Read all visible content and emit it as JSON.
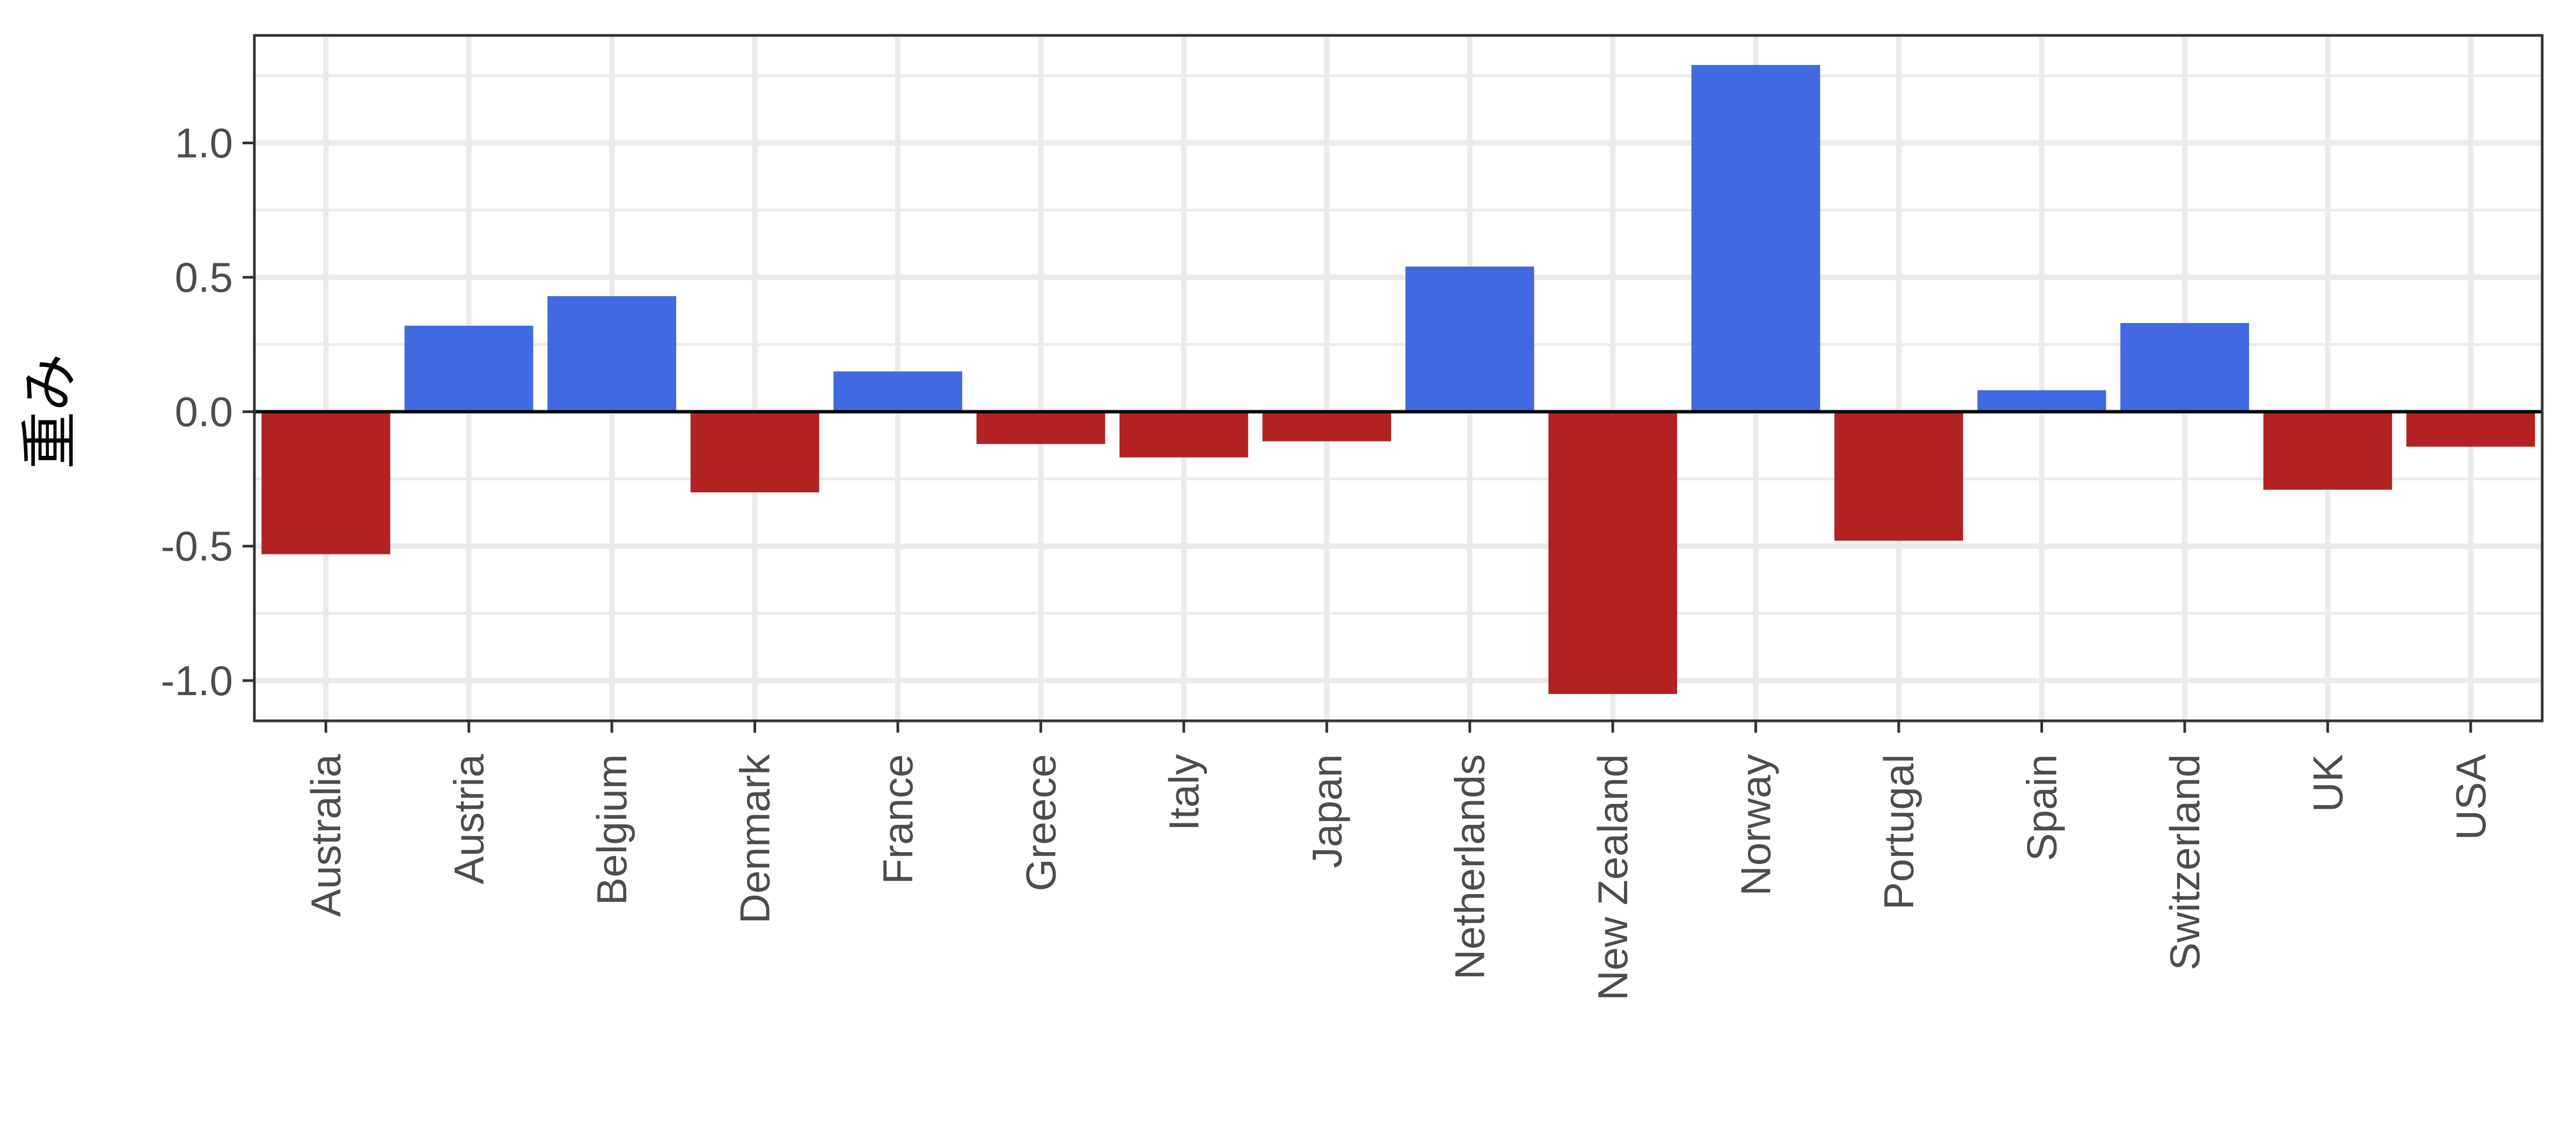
{
  "chart_data": {
    "type": "bar",
    "title": "",
    "xlabel": "",
    "ylabel": "重み",
    "categories": [
      "Australia",
      "Austria",
      "Belgium",
      "Denmark",
      "France",
      "Greece",
      "Italy",
      "Japan",
      "Netherlands",
      "New Zealand",
      "Norway",
      "Portugal",
      "Spain",
      "Switzerland",
      "UK",
      "USA"
    ],
    "values": [
      -0.53,
      0.32,
      0.43,
      -0.3,
      0.15,
      -0.12,
      -0.17,
      -0.11,
      0.54,
      -1.05,
      1.29,
      -0.48,
      0.08,
      0.33,
      -0.29,
      -0.13
    ],
    "ylim": [
      -1.15,
      1.4
    ],
    "yticks": [
      -1.0,
      -0.5,
      0.0,
      0.5,
      1.0
    ],
    "ytick_labels": [
      "-1.0",
      "-0.5",
      "0.0",
      "0.5",
      "1.0"
    ],
    "grid": true,
    "legend": "none",
    "colors": {
      "positive": "#4169E1",
      "negative": "#B22222",
      "grid": "#EBEBEB",
      "panel_border": "#333333",
      "zero_line": "#000000",
      "tick_text": "#4D4D4D"
    }
  }
}
